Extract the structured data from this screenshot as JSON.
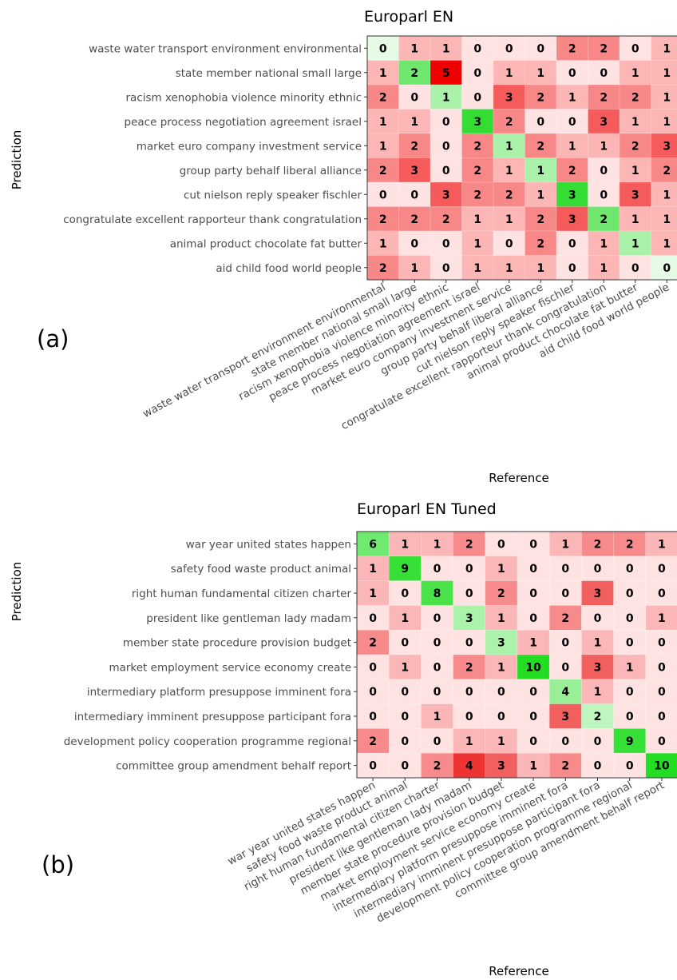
{
  "chart_data": [
    {
      "type": "heatmap",
      "panel_label": "(a)",
      "title": "Europarl EN",
      "xlabel": "Reference",
      "ylabel": "Prediction",
      "rows": [
        "waste water transport environment environmental",
        "state member national small large",
        "racism xenophobia violence minority ethnic",
        "peace process negotiation agreement israel",
        "market euro company investment service",
        "group party behalf liberal alliance",
        "cut nielson reply speaker fischler",
        "congratulate excellent rapporteur thank congratulation",
        "animal product chocolate fat butter",
        "aid child food world people"
      ],
      "columns": [
        "waste water transport environment environmental",
        "state member national small large",
        "racism xenophobia violence minority ethnic",
        "peace process negotiation agreement israel",
        "market euro company investment service",
        "group party behalf liberal alliance",
        "cut nielson reply speaker fischler",
        "congratulate excellent rapporteur thank congratulation",
        "animal product chocolate fat butter",
        "aid child food world people"
      ],
      "values": [
        [
          0,
          1,
          1,
          0,
          0,
          0,
          2,
          2,
          0,
          1
        ],
        [
          1,
          2,
          5,
          0,
          1,
          1,
          0,
          0,
          1,
          1
        ],
        [
          2,
          0,
          1,
          0,
          3,
          2,
          1,
          2,
          2,
          1
        ],
        [
          1,
          1,
          0,
          3,
          2,
          0,
          0,
          3,
          1,
          1
        ],
        [
          1,
          2,
          0,
          2,
          1,
          2,
          1,
          1,
          2,
          3
        ],
        [
          2,
          3,
          0,
          2,
          1,
          1,
          2,
          0,
          1,
          2
        ],
        [
          0,
          0,
          3,
          2,
          2,
          1,
          3,
          0,
          3,
          1
        ],
        [
          2,
          2,
          2,
          1,
          1,
          2,
          3,
          2,
          1,
          1
        ],
        [
          1,
          0,
          0,
          1,
          0,
          2,
          0,
          1,
          1,
          1
        ],
        [
          2,
          1,
          0,
          1,
          1,
          1,
          0,
          1,
          0,
          0
        ]
      ],
      "colors": {
        "diagonal_high": "#33dd33",
        "diagonal_low": "#e6fbe6",
        "offdiag_high": "#ee0000",
        "offdiag_low": "#ffe3e3"
      }
    },
    {
      "type": "heatmap",
      "panel_label": "(b)",
      "title": "Europarl EN Tuned",
      "xlabel": "Reference",
      "ylabel": "Prediction",
      "rows": [
        "war year united states happen",
        "safety food waste product animal",
        "right human fundamental citizen charter",
        "president like gentleman lady madam",
        "member state procedure provision budget",
        "market employment service economy create",
        "intermediary platform presuppose imminent fora",
        "intermediary imminent presuppose participant fora",
        "development policy cooperation programme regional",
        "committee group amendment behalf report"
      ],
      "columns": [
        "war year united states happen",
        "safety food waste product animal",
        "right human fundamental citizen charter",
        "president like gentleman lady madam",
        "member state procedure provision budget",
        "market employment service economy create",
        "intermediary platform presuppose imminent fora",
        "intermediary imminent presuppose participant fora",
        "development policy cooperation programme regional",
        "committee group amendment behalf report"
      ],
      "values": [
        [
          6,
          1,
          1,
          2,
          0,
          0,
          1,
          2,
          2,
          1
        ],
        [
          1,
          9,
          0,
          0,
          1,
          0,
          0,
          0,
          0,
          0
        ],
        [
          1,
          0,
          8,
          0,
          2,
          0,
          0,
          3,
          0,
          0
        ],
        [
          0,
          1,
          0,
          3,
          1,
          0,
          2,
          0,
          0,
          1
        ],
        [
          2,
          0,
          0,
          0,
          3,
          1,
          0,
          1,
          0,
          0
        ],
        [
          0,
          1,
          0,
          2,
          1,
          10,
          0,
          3,
          1,
          0
        ],
        [
          0,
          0,
          0,
          0,
          0,
          0,
          4,
          1,
          0,
          0
        ],
        [
          0,
          0,
          1,
          0,
          0,
          0,
          3,
          2,
          0,
          0
        ],
        [
          2,
          0,
          0,
          1,
          1,
          0,
          0,
          0,
          9,
          0
        ],
        [
          0,
          0,
          2,
          4,
          3,
          1,
          2,
          0,
          0,
          10
        ]
      ],
      "colors": {
        "diagonal_high": "#22dd22",
        "diagonal_low": "#e6fbe6",
        "offdiag_high": "#ee3333",
        "offdiag_low": "#ffe3e3"
      }
    }
  ]
}
